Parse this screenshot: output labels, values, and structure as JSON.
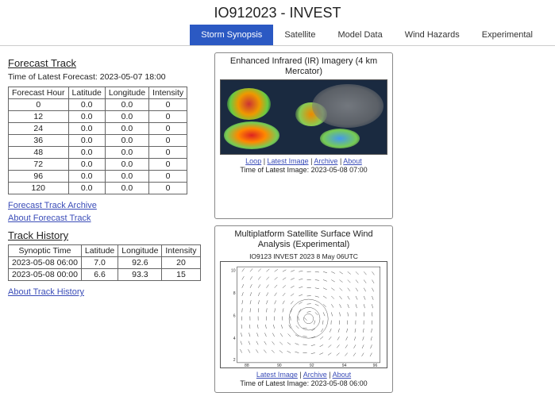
{
  "page_title": "IO912023 - INVEST",
  "tabs": [
    {
      "label": "Storm Synopsis",
      "active": true
    },
    {
      "label": "Satellite",
      "active": false
    },
    {
      "label": "Model Data",
      "active": false
    },
    {
      "label": "Wind Hazards",
      "active": false
    },
    {
      "label": "Experimental",
      "active": false
    }
  ],
  "forecast": {
    "heading": "Forecast Track",
    "time_label": "Time of Latest Forecast: 2023-05-07 18:00",
    "columns": [
      "Forecast Hour",
      "Latitude",
      "Longitude",
      "Intensity"
    ],
    "rows": [
      [
        "0",
        "0.0",
        "0.0",
        "0"
      ],
      [
        "12",
        "0.0",
        "0.0",
        "0"
      ],
      [
        "24",
        "0.0",
        "0.0",
        "0"
      ],
      [
        "36",
        "0.0",
        "0.0",
        "0"
      ],
      [
        "48",
        "0.0",
        "0.0",
        "0"
      ],
      [
        "72",
        "0.0",
        "0.0",
        "0"
      ],
      [
        "96",
        "0.0",
        "0.0",
        "0"
      ],
      [
        "120",
        "0.0",
        "0.0",
        "0"
      ]
    ],
    "archive_link": "Forecast Track Archive",
    "about_link": "About Forecast Track"
  },
  "history": {
    "heading": "Track History",
    "columns": [
      "Synoptic Time",
      "Latitude",
      "Longitude",
      "Intensity"
    ],
    "rows": [
      [
        "2023-05-08 06:00",
        "7.0",
        "92.6",
        "20"
      ],
      [
        "2023-05-08 00:00",
        "6.6",
        "93.3",
        "15"
      ]
    ],
    "about_link": "About Track History"
  },
  "ir_panel": {
    "title": "Enhanced Infrared (IR) Imagery (4 km Mercator)",
    "links": [
      "Loop",
      "Latest Image",
      "Archive",
      "About"
    ],
    "caption": "Time of Latest Image: 2023-05-08 07:00"
  },
  "wind_panel": {
    "title": "Multiplatform Satellite Surface Wind Analysis (Experimental)",
    "subtitle": "IO9123   INVEST   2023   8 May 06UTC",
    "links": [
      "Latest Image",
      "Archive",
      "About"
    ],
    "caption": "Time of Latest Image: 2023-05-08 06:00"
  }
}
